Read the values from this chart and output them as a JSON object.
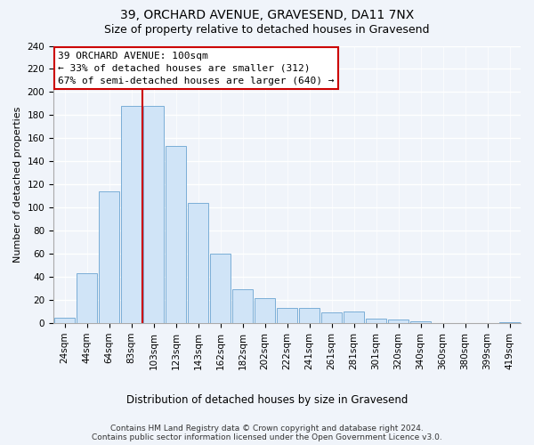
{
  "title": "39, ORCHARD AVENUE, GRAVESEND, DA11 7NX",
  "subtitle": "Size of property relative to detached houses in Gravesend",
  "xlabel": "Distribution of detached houses by size in Gravesend",
  "ylabel": "Number of detached properties",
  "bar_labels": [
    "24sqm",
    "44sqm",
    "64sqm",
    "83sqm",
    "103sqm",
    "123sqm",
    "143sqm",
    "162sqm",
    "182sqm",
    "202sqm",
    "222sqm",
    "241sqm",
    "261sqm",
    "281sqm",
    "301sqm",
    "320sqm",
    "340sqm",
    "360sqm",
    "380sqm",
    "399sqm",
    "419sqm"
  ],
  "bar_values": [
    5,
    43,
    114,
    188,
    188,
    153,
    104,
    60,
    29,
    22,
    13,
    13,
    9,
    10,
    4,
    3,
    2,
    0,
    0,
    0,
    1
  ],
  "bar_color": "#d0e4f7",
  "bar_edge_color": "#7aaed6",
  "vline_color": "#cc0000",
  "vline_x_index": 4,
  "annotation_title": "39 ORCHARD AVENUE: 100sqm",
  "annotation_line1": "← 33% of detached houses are smaller (312)",
  "annotation_line2": "67% of semi-detached houses are larger (640) →",
  "annotation_box_color": "#ffffff",
  "annotation_box_edge_color": "#cc0000",
  "ylim": [
    0,
    240
  ],
  "yticks": [
    0,
    20,
    40,
    60,
    80,
    100,
    120,
    140,
    160,
    180,
    200,
    220,
    240
  ],
  "footer_line1": "Contains HM Land Registry data © Crown copyright and database right 2024.",
  "footer_line2": "Contains public sector information licensed under the Open Government Licence v3.0.",
  "bg_color": "#f0f4fa",
  "grid_color": "#ffffff",
  "title_fontsize": 10,
  "subtitle_fontsize": 9,
  "ylabel_fontsize": 8,
  "tick_fontsize": 7.5,
  "annotation_fontsize": 8,
  "xlabel_fontsize": 8.5,
  "footer_fontsize": 6.5
}
